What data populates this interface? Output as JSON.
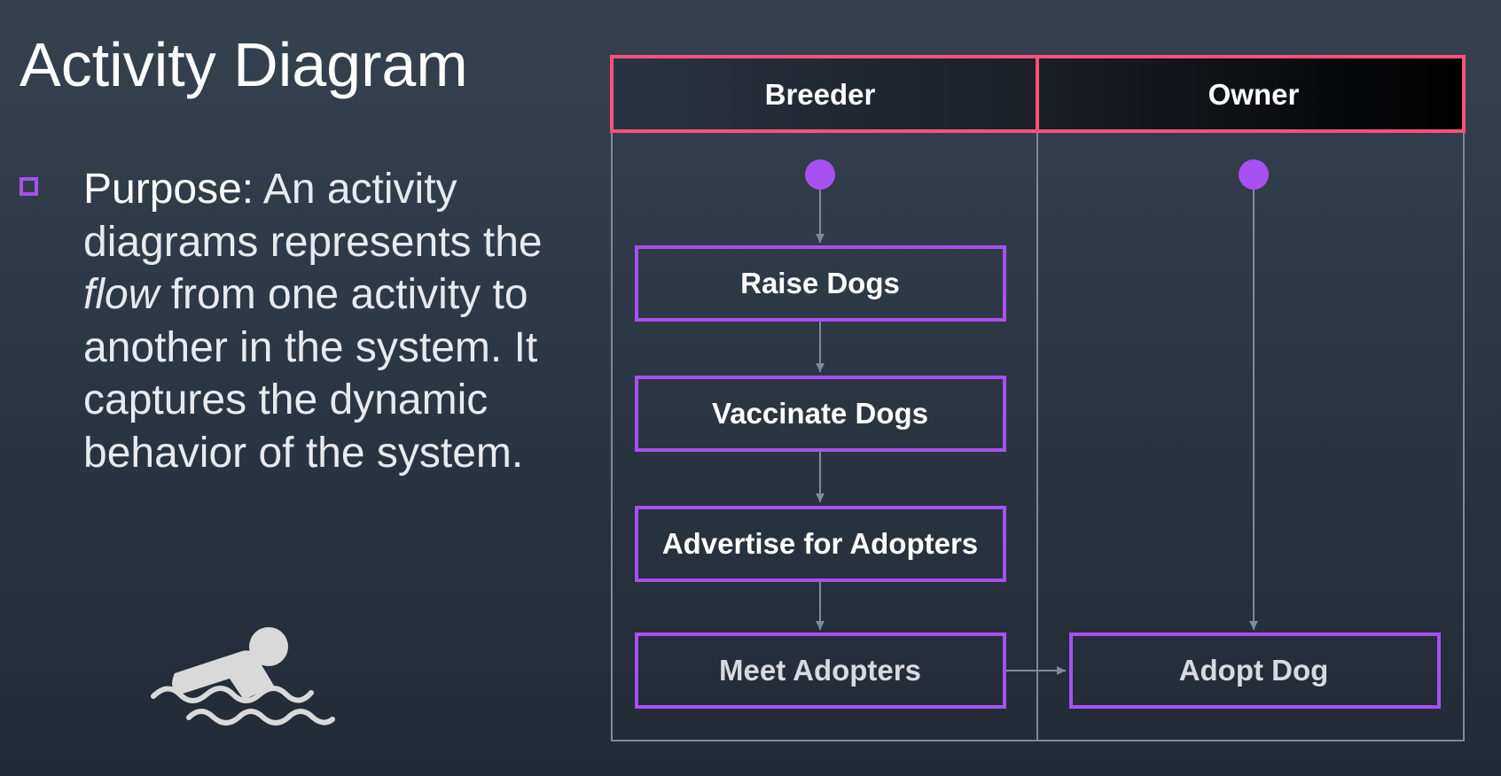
{
  "slide": {
    "title": "Activity Diagram",
    "bullet": {
      "label": "Purpose:",
      "text_before": " An activity diagrams represents the ",
      "emphasis": "flow",
      "text_after": " from one activity to another in the system. It captures the dynamic behavior of the  system."
    },
    "illustration_icon": "swimmer-icon"
  },
  "diagram": {
    "lanes": [
      "Breeder",
      "Owner"
    ],
    "activities": [
      "Raise Dogs",
      "Vaccinate Dogs",
      "Advertise for Adopters",
      "Meet Adopters",
      "Adopt Dog"
    ]
  },
  "colors": {
    "lane_header_border": "#ff4f7b",
    "activity_border": "#a651f0",
    "start_node": "#a651f0",
    "connector": "#7a8ba0",
    "lane_border": "#7d8a99"
  }
}
